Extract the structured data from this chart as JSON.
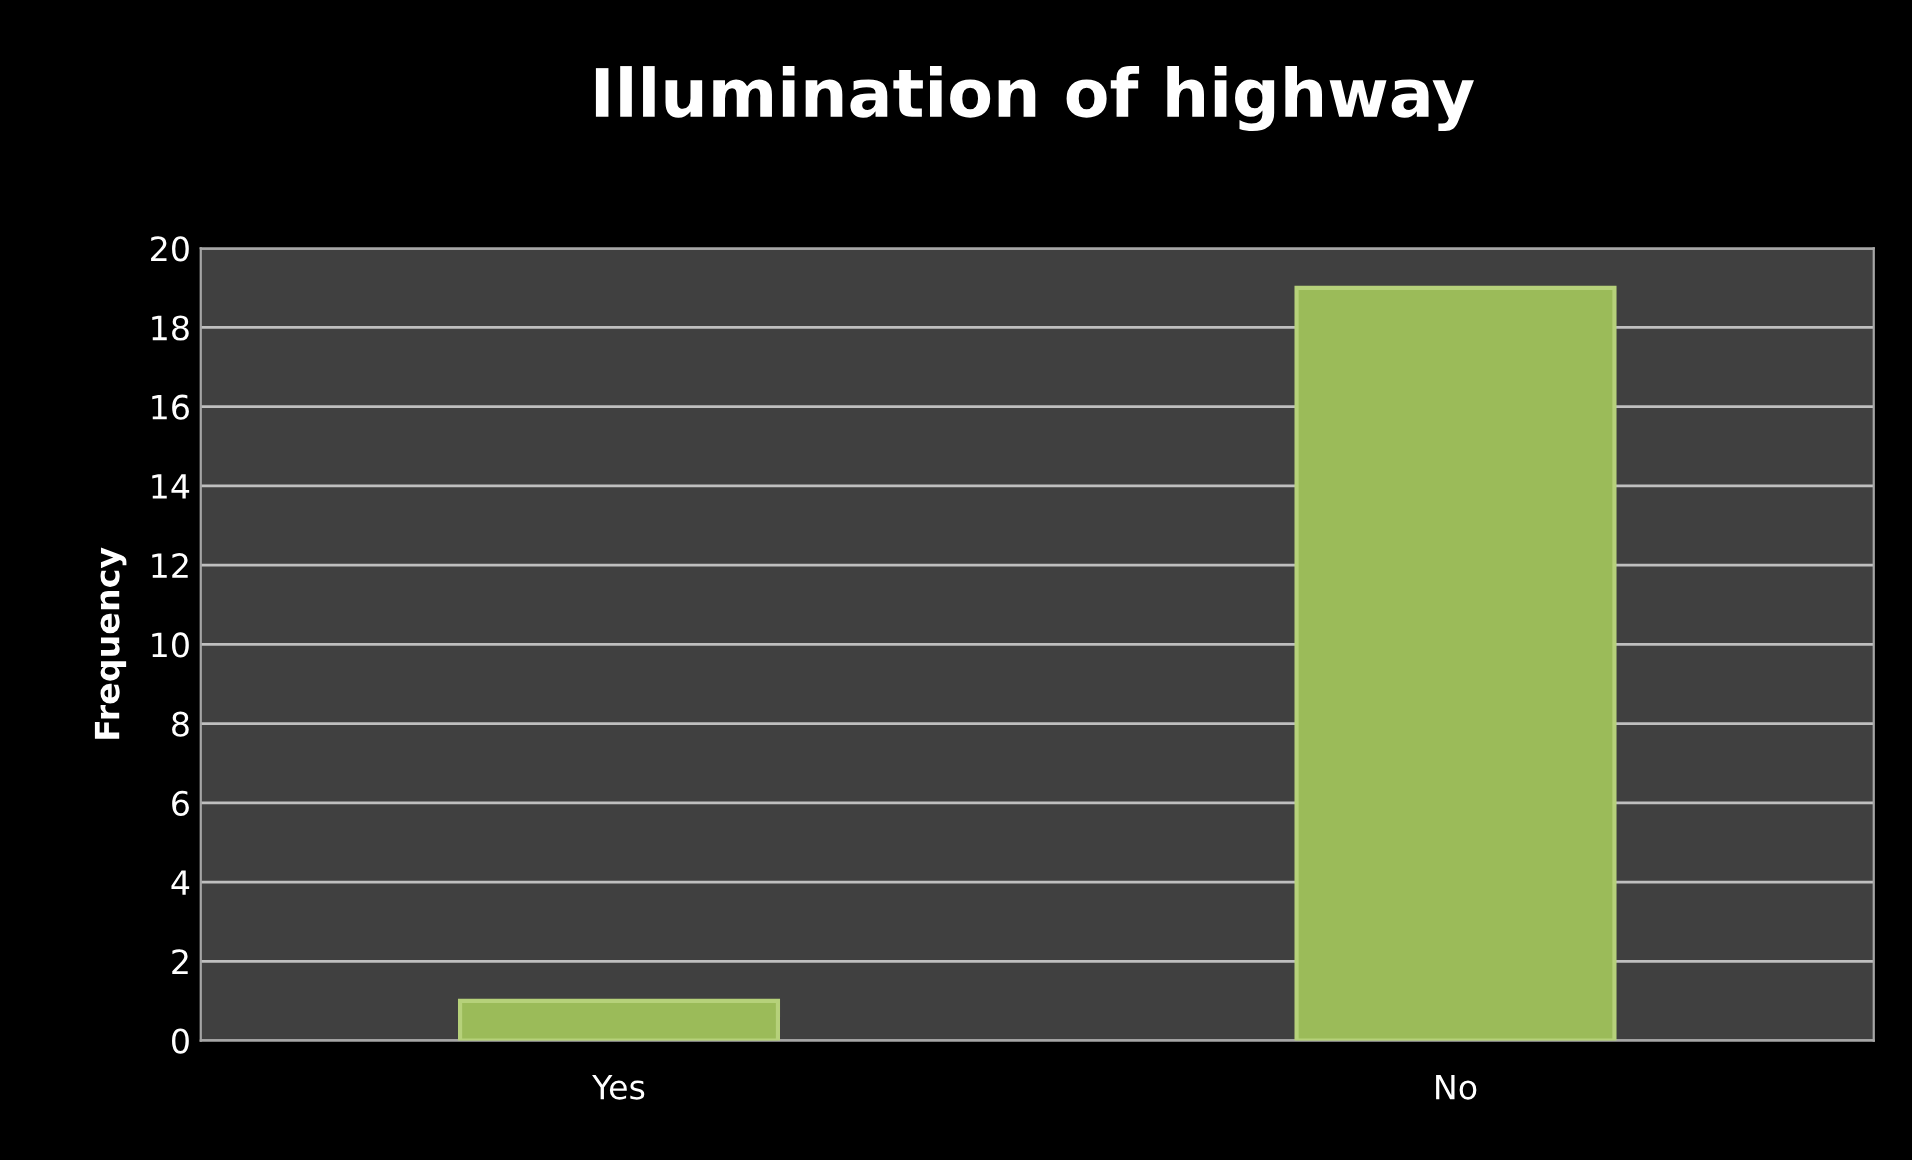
{
  "chart_data": {
    "type": "bar",
    "title": "Illumination of highway",
    "ylabel": "Frequency",
    "categories": [
      "Yes",
      "No"
    ],
    "values": [
      1,
      19
    ],
    "color": "#9bbb59",
    "ylim": [
      0,
      20
    ],
    "yticks": [
      0,
      2,
      4,
      6,
      8,
      10,
      12,
      14,
      16,
      18,
      20
    ],
    "grid": "y",
    "legend": false
  }
}
